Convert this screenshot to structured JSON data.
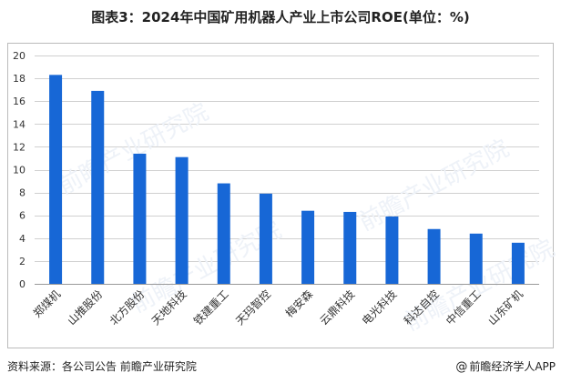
{
  "title": "图表3：2024年中国矿用机器人产业上市公司ROE(单位：%)",
  "source": "资料来源：各公司公告 前瞻产业研究院",
  "brand": "前瞻经济学人APP",
  "brand_symbol": "@",
  "watermark": "前瞻产业研究院",
  "colors": {
    "bar": "#1767d6",
    "grid": "#d0d0d0",
    "axis": "#999999",
    "tick_text": "#333333"
  },
  "chart_data": {
    "type": "bar",
    "categories": [
      "郑煤机",
      "山推股份",
      "北方股份",
      "天地科技",
      "铁建重工",
      "天玛智控",
      "梅安森",
      "云鼎科技",
      "电光科技",
      "科达自控",
      "中信重工",
      "山东矿机"
    ],
    "values": [
      18.3,
      16.9,
      11.4,
      11.1,
      8.8,
      7.9,
      6.4,
      6.3,
      5.9,
      4.8,
      4.4,
      3.6
    ],
    "ylim": [
      0,
      20
    ],
    "yticks": [
      0,
      2,
      4,
      6,
      8,
      10,
      12,
      14,
      16,
      18,
      20
    ],
    "grid": true,
    "legend": "none"
  }
}
